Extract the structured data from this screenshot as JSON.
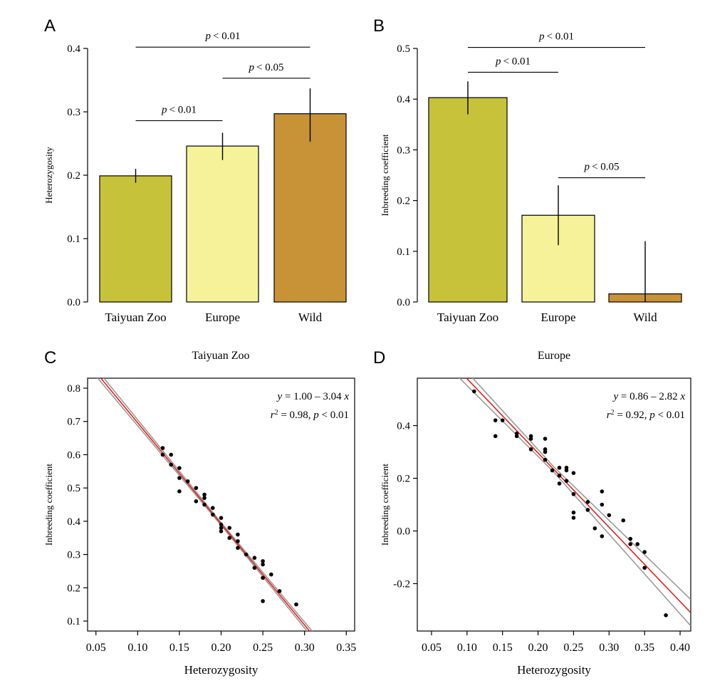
{
  "colors": {
    "taiyuan": "#c6c33b",
    "europe": "#f5f29a",
    "wild": "#c89337",
    "fit": "#e2231a",
    "ci": "#9a9a9a",
    "point": "#000000"
  },
  "chart_data": [
    {
      "panel": "A",
      "type": "bar",
      "title": "",
      "xlabel": "",
      "ylabel": "Heterozygosity",
      "ylim": [
        0,
        0.4
      ],
      "yticks": [
        "0.0",
        "0.1",
        "0.2",
        "0.3",
        "0.4"
      ],
      "categories": [
        "Taiyuan Zoo",
        "Europe",
        "Wild"
      ],
      "values": [
        0.199,
        0.246,
        0.297
      ],
      "err_low": [
        0.188,
        0.224,
        0.253
      ],
      "err_high": [
        0.21,
        0.267,
        0.337
      ],
      "annotations": [
        {
          "from": 0,
          "to": 1,
          "p": "p",
          "text": "< 0.01",
          "level": 0.286
        },
        {
          "from": 1,
          "to": 2,
          "p": "p",
          "text": "< 0.05",
          "level": 0.353
        },
        {
          "from": 0,
          "to": 2,
          "p": "p",
          "text": "< 0.01",
          "level": 0.402
        }
      ]
    },
    {
      "panel": "B",
      "type": "bar",
      "title": "",
      "xlabel": "",
      "ylabel": "Inbreeding coefficient",
      "ylim": [
        0,
        0.5
      ],
      "yticks": [
        "0.0",
        "0.1",
        "0.2",
        "0.3",
        "0.4",
        "0.5"
      ],
      "categories": [
        "Taiyuan Zoo",
        "Europe",
        "Wild"
      ],
      "values": [
        0.403,
        0.171,
        0.016
      ],
      "err_low": [
        0.37,
        0.112,
        0.0
      ],
      "err_high": [
        0.435,
        0.23,
        0.12
      ],
      "annotations": [
        {
          "from": 0,
          "to": 1,
          "p": "p",
          "text": "< 0.01",
          "level": 0.453
        },
        {
          "from": 1,
          "to": 2,
          "p": "p",
          "text": "< 0.05",
          "level": 0.245
        },
        {
          "from": 0,
          "to": 2,
          "p": "p",
          "text": "< 0.01",
          "level": 0.502
        }
      ]
    },
    {
      "panel": "C",
      "type": "scatter",
      "title": "Taiyuan Zoo",
      "xlabel": "Heterozygosity",
      "ylabel": "Inbreeding coefficient",
      "xlim": [
        0.04,
        0.36
      ],
      "ylim": [
        0.07,
        0.83
      ],
      "xticks": [
        "0.05",
        "0.10",
        "0.15",
        "0.20",
        "0.25",
        "0.30",
        "0.35"
      ],
      "yticks": [
        "0.1",
        "0.2",
        "0.3",
        "0.4",
        "0.5",
        "0.6",
        "0.7",
        "0.8"
      ],
      "fit": {
        "intercept": 1.0,
        "slope": -3.04,
        "ci_upper_delta": [
          0.012,
          0.004,
          0.012
        ],
        "ci_lower_delta": [
          -0.012,
          -0.004,
          -0.012
        ]
      },
      "equation_y": "y",
      "equation": " = 1.00 – 3.04 ",
      "equation_x": "x",
      "stats_r": "r",
      "stats_r_sup": "2",
      "stats_rest": " = 0.98, ",
      "stats_p": "p",
      "stats_p_text": " < 0.01",
      "points": [
        [
          0.13,
          0.62
        ],
        [
          0.13,
          0.6
        ],
        [
          0.14,
          0.6
        ],
        [
          0.14,
          0.57
        ],
        [
          0.15,
          0.56
        ],
        [
          0.15,
          0.53
        ],
        [
          0.15,
          0.49
        ],
        [
          0.16,
          0.52
        ],
        [
          0.17,
          0.5
        ],
        [
          0.17,
          0.46
        ],
        [
          0.18,
          0.48
        ],
        [
          0.18,
          0.47
        ],
        [
          0.18,
          0.45
        ],
        [
          0.19,
          0.44
        ],
        [
          0.19,
          0.42
        ],
        [
          0.2,
          0.41
        ],
        [
          0.2,
          0.39
        ],
        [
          0.2,
          0.38
        ],
        [
          0.2,
          0.37
        ],
        [
          0.21,
          0.38
        ],
        [
          0.21,
          0.35
        ],
        [
          0.22,
          0.36
        ],
        [
          0.22,
          0.34
        ],
        [
          0.22,
          0.32
        ],
        [
          0.23,
          0.3
        ],
        [
          0.24,
          0.29
        ],
        [
          0.24,
          0.26
        ],
        [
          0.25,
          0.28
        ],
        [
          0.25,
          0.27
        ],
        [
          0.25,
          0.23
        ],
        [
          0.25,
          0.16
        ],
        [
          0.26,
          0.24
        ],
        [
          0.27,
          0.19
        ],
        [
          0.29,
          0.15
        ]
      ]
    },
    {
      "panel": "D",
      "type": "scatter",
      "title": "Europe",
      "xlabel": "Heterozygosity",
      "ylabel": "Inbreeding coefficient",
      "xlim": [
        0.03,
        0.415
      ],
      "ylim": [
        -0.38,
        0.58
      ],
      "xticks": [
        "0.05",
        "0.10",
        "0.15",
        "0.20",
        "0.25",
        "0.30",
        "0.35",
        "0.40"
      ],
      "yticks": [
        "-0.2",
        "0.0",
        "0.2",
        "0.4"
      ],
      "fit": {
        "intercept": 0.86,
        "slope": -2.82,
        "ci_upper_delta": [
          0.035,
          0.01,
          0.05
        ],
        "ci_lower_delta": [
          -0.035,
          -0.01,
          -0.05
        ]
      },
      "equation_y": "y",
      "equation": " = 0.86 – 2.82 ",
      "equation_x": "x",
      "stats_r": "r",
      "stats_r_sup": "2",
      "stats_rest": " = 0.92, ",
      "stats_p": "p",
      "stats_p_text": " < 0.01",
      "points": [
        [
          0.11,
          0.53
        ],
        [
          0.14,
          0.42
        ],
        [
          0.14,
          0.36
        ],
        [
          0.15,
          0.42
        ],
        [
          0.17,
          0.37
        ],
        [
          0.17,
          0.36
        ],
        [
          0.19,
          0.36
        ],
        [
          0.19,
          0.35
        ],
        [
          0.19,
          0.31
        ],
        [
          0.21,
          0.35
        ],
        [
          0.21,
          0.31
        ],
        [
          0.21,
          0.3
        ],
        [
          0.21,
          0.27
        ],
        [
          0.22,
          0.23
        ],
        [
          0.23,
          0.24
        ],
        [
          0.23,
          0.21
        ],
        [
          0.23,
          0.18
        ],
        [
          0.24,
          0.24
        ],
        [
          0.24,
          0.23
        ],
        [
          0.24,
          0.19
        ],
        [
          0.25,
          0.22
        ],
        [
          0.25,
          0.14
        ],
        [
          0.25,
          0.07
        ],
        [
          0.25,
          0.05
        ],
        [
          0.27,
          0.11
        ],
        [
          0.27,
          0.08
        ],
        [
          0.28,
          0.01
        ],
        [
          0.29,
          0.15
        ],
        [
          0.29,
          0.1
        ],
        [
          0.29,
          -0.02
        ],
        [
          0.3,
          0.06
        ],
        [
          0.32,
          0.04
        ],
        [
          0.33,
          -0.03
        ],
        [
          0.33,
          -0.05
        ],
        [
          0.34,
          -0.05
        ],
        [
          0.35,
          -0.08
        ],
        [
          0.35,
          -0.14
        ],
        [
          0.38,
          -0.32
        ]
      ]
    }
  ]
}
